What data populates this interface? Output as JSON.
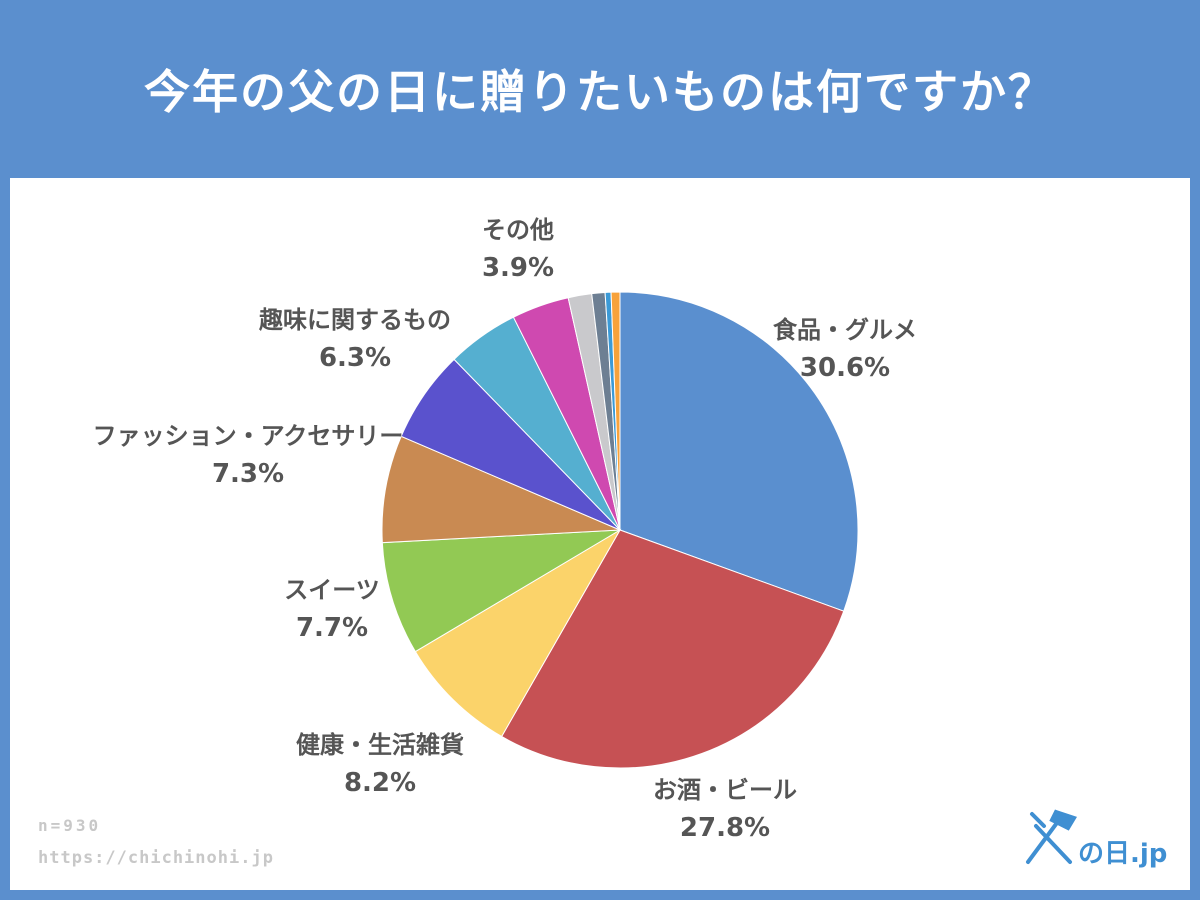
{
  "title": "今年の父の日に贈りたいものは何ですか？",
  "footer": {
    "sample": "n=930",
    "url": "https://chichinohi.jp"
  },
  "logo": {
    "text": "父の日.jp",
    "color": "#3f8fd2"
  },
  "chart_data": {
    "type": "pie",
    "title": "今年の父の日に贈りたいものは何ですか？",
    "start_angle_deg": 0,
    "direction": "clockwise",
    "slices": [
      {
        "label": "食品・グルメ",
        "value": 30.6,
        "display": "30.6%",
        "color": "#5a8fcf"
      },
      {
        "label": "お酒・ビール",
        "value": 27.8,
        "display": "27.8%",
        "color": "#c65154"
      },
      {
        "label": "健康・生活雑貨",
        "value": 8.2,
        "display": "8.2%",
        "color": "#fbd36a"
      },
      {
        "label": "スイーツ",
        "value": 7.7,
        "display": "7.7%",
        "color": "#92c954"
      },
      {
        "label": "ファッション・アクセサリー",
        "value": 7.3,
        "display": "7.3%",
        "color": "#c98a52"
      },
      {
        "label": "趣味に関するもの",
        "value": 6.3,
        "display": "6.3%",
        "color": "#5a52cd"
      },
      {
        "label": "",
        "value": 4.9,
        "display": "",
        "color": "#55afd0"
      },
      {
        "label": "その他",
        "value": 3.9,
        "display": "3.9%",
        "color": "#cf49b0"
      },
      {
        "label": "",
        "value": 1.6,
        "display": "",
        "color": "#c9c9cc"
      },
      {
        "label": "",
        "value": 0.9,
        "display": "",
        "color": "#6d7f93"
      },
      {
        "label": "",
        "value": 0.4,
        "display": "",
        "color": "#3b9ad7"
      },
      {
        "label": "",
        "value": 0.6,
        "display": "",
        "color": "#f7a23b"
      }
    ]
  }
}
